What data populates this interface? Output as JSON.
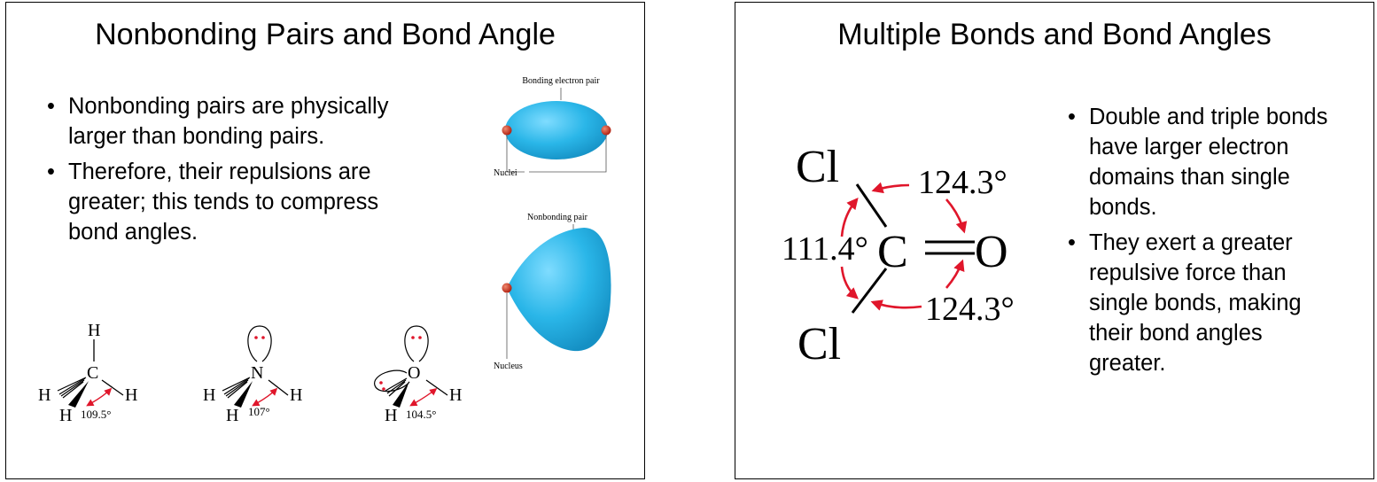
{
  "slide1": {
    "title": "Nonbonding Pairs and Bond Angle",
    "bullets": [
      "Nonbonding pairs are physically larger than bonding pairs.",
      "Therefore, their repulsions are greater; this tends to compress bond angles."
    ],
    "bonding_pair_label": "Bonding electron pair",
    "nuclei_label": "Nuclei",
    "nonbonding_pair_label": "Nonbonding pair",
    "nucleus_label": "Nucleus",
    "molecules": {
      "ch4": {
        "center": "C",
        "atom": "H",
        "angle": "109.5°"
      },
      "nh3": {
        "center": "N",
        "atom": "H",
        "angle": "107°"
      },
      "h2o": {
        "center": "O",
        "atom": "H",
        "angle": "104.5°"
      }
    }
  },
  "slide2": {
    "title": "Multiple Bonds and Bond Angles",
    "bullets": [
      "Double and triple bonds have larger electron domains than single bonds.",
      "They exert a greater repulsive force than single bonds, making their bond angles greater."
    ],
    "molecule": {
      "cl": "Cl",
      "c": "C",
      "o": "O",
      "angle_top": "124.3°",
      "angle_left": "111.4°",
      "angle_bottom": "124.3°"
    }
  },
  "colors": {
    "lobe": "#2ab6e8",
    "nucleus": "#d23a2a",
    "arrow": "#e0162b"
  }
}
